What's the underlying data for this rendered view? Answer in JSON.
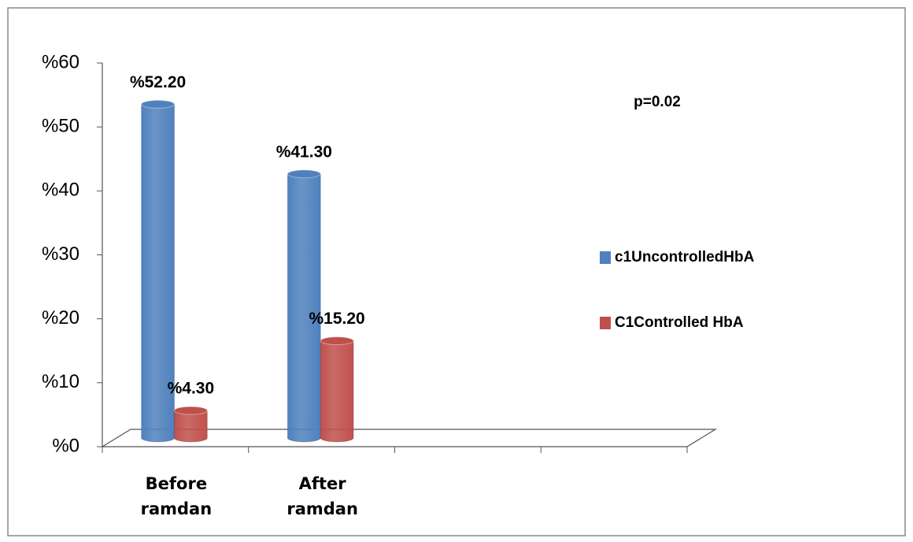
{
  "chart_data": {
    "type": "bar",
    "categories": [
      "Before ramdan",
      "After ramdan",
      null,
      null
    ],
    "series": [
      {
        "name": "c1UncontrolledHbA",
        "color": "#4f81bd",
        "values": [
          52.2,
          41.3,
          null,
          null
        ],
        "value_labels": [
          "%52.20",
          "%41.30",
          null,
          null
        ]
      },
      {
        "name": "C1Controlled HbA",
        "color": "#c0504d",
        "values": [
          4.3,
          15.2,
          null,
          null
        ],
        "value_labels": [
          "%4.30",
          "%15.20",
          null,
          null
        ]
      }
    ],
    "ylim": [
      0,
      60
    ],
    "yticks": [
      {
        "value": 0,
        "label": "%0"
      },
      {
        "value": 10,
        "label": "%10"
      },
      {
        "value": 20,
        "label": "%20"
      },
      {
        "value": 30,
        "label": "%30"
      },
      {
        "value": 40,
        "label": "%40"
      },
      {
        "value": 50,
        "label": "%50"
      },
      {
        "value": 60,
        "label": "%60"
      }
    ],
    "annotation": "p=0.02",
    "legend": "right"
  }
}
